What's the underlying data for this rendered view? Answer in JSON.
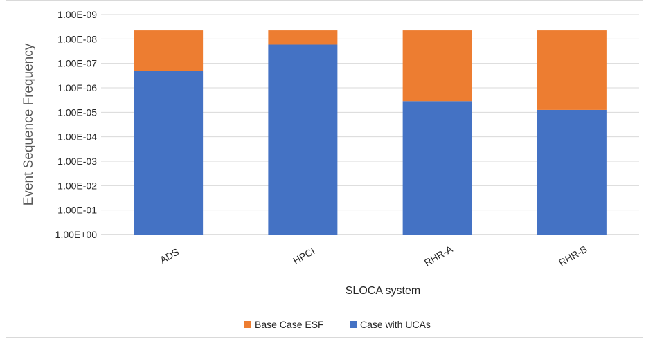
{
  "chart_data": {
    "type": "bar",
    "stacked": true,
    "categories": [
      "ADS",
      "HPCI",
      "RHR-A",
      "RHR-B"
    ],
    "series": [
      {
        "name": "Case with UCAs",
        "color": "#4472C4",
        "values": [
          2e-07,
          1.7e-08,
          3.5e-06,
          8e-06
        ]
      },
      {
        "name": "Base Case ESF",
        "color": "#ED7D31",
        "values": [
          4.5e-09,
          4.5e-09,
          4.5e-09,
          4.5e-09
        ]
      }
    ],
    "y_axis": {
      "scale": "log",
      "reversed": true,
      "min": 1e-09,
      "max": 1,
      "tick_values": [
        1,
        0.1,
        0.01,
        0.001,
        0.0001,
        1e-05,
        1e-06,
        1e-07,
        1e-08,
        1e-09
      ],
      "tick_labels": [
        "1.00E+00",
        "1.00E-01",
        "1.00E-02",
        "1.00E-03",
        "1.00E-04",
        "1.00E-05",
        "1.00E-06",
        "1.00E-07",
        "1.00E-08",
        "1.00E-09"
      ]
    },
    "xlabel": "SLOCA system",
    "ylabel": "Event Sequence Frequency",
    "grid": true,
    "legend_position": "bottom",
    "legend": [
      "Base Case ESF",
      "Case with UCAs"
    ]
  }
}
